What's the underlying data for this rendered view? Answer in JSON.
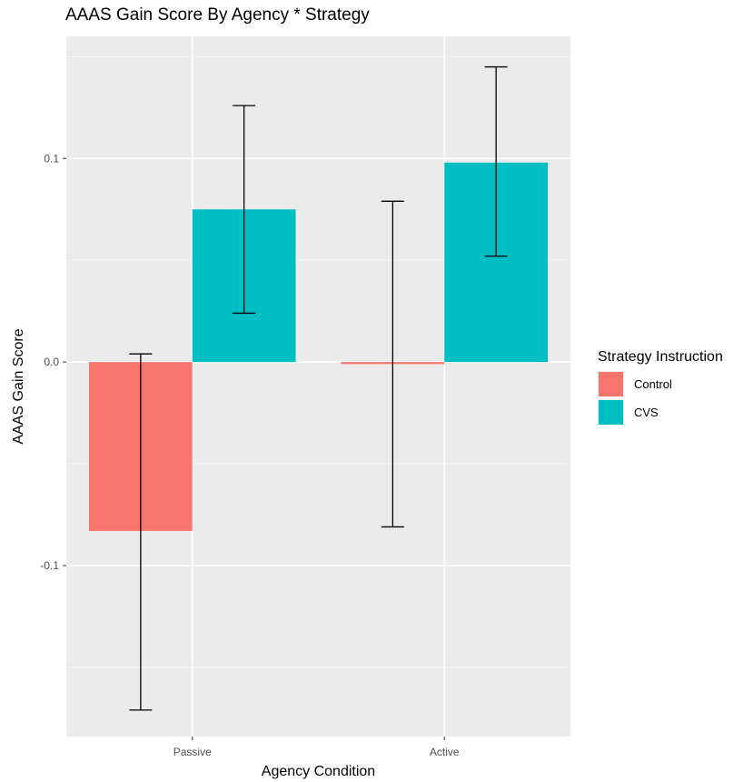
{
  "chart_data": {
    "type": "bar",
    "title": "AAAS Gain Score By Agency * Strategy",
    "xlabel": "Agency Condition",
    "ylabel": "AAAS Gain Score",
    "categories": [
      "Passive",
      "Active"
    ],
    "ylim": [
      -0.184,
      0.16
    ],
    "yticks": [
      -0.1,
      0.0,
      0.1
    ],
    "ytick_labels": [
      "-0.1",
      "0.0",
      "0.1"
    ],
    "grid": true,
    "legend": {
      "title": "Strategy Instruction",
      "position": "right"
    },
    "series": [
      {
        "name": "Control",
        "color": "#F8766D",
        "values": [
          -0.083,
          -0.001
        ],
        "error_low": [
          -0.171,
          -0.081
        ],
        "error_high": [
          0.004,
          0.079
        ]
      },
      {
        "name": "CVS",
        "color": "#00BFC4",
        "values": [
          0.075,
          0.098
        ],
        "error_low": [
          0.024,
          0.052
        ],
        "error_high": [
          0.126,
          0.145
        ]
      }
    ]
  }
}
